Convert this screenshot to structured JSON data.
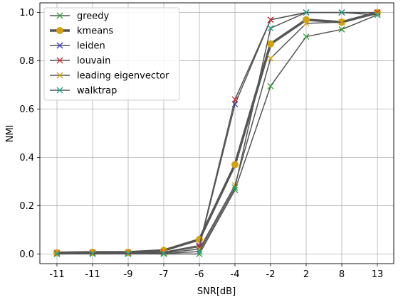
{
  "chart_data": {
    "type": "line",
    "xlabel": "SNR[dB]",
    "ylabel": "NMI",
    "categories": [
      "-11",
      "-11",
      "-9",
      "-7",
      "-6",
      "-4",
      "-2",
      "2",
      "8",
      "13"
    ],
    "ylim": [
      -0.04,
      1.04
    ],
    "yticks": [
      "0.0",
      "0.2",
      "0.4",
      "0.6",
      "0.8",
      "1.0"
    ],
    "grid": true,
    "legend_position": "top-left",
    "line_color": "#555555",
    "series": [
      {
        "name": "greedy",
        "marker": "x",
        "color": "#2ca02c",
        "emphasis": false,
        "values": [
          0.0,
          0.0,
          0.0,
          0.0,
          0.0,
          0.265,
          0.695,
          0.9,
          0.93,
          0.99
        ]
      },
      {
        "name": "kmeans",
        "marker": "o",
        "color": "#d4a20d",
        "emphasis": true,
        "values": [
          0.005,
          0.007,
          0.007,
          0.015,
          0.06,
          0.37,
          0.87,
          0.97,
          0.96,
          1.0
        ]
      },
      {
        "name": "leiden",
        "marker": "x",
        "color": "#3a3acc",
        "emphasis": false,
        "values": [
          0.003,
          0.004,
          0.004,
          0.006,
          0.03,
          0.62,
          0.97,
          1.0,
          1.0,
          1.0
        ]
      },
      {
        "name": "louvain",
        "marker": "x",
        "color": "#d62728",
        "emphasis": false,
        "values": [
          0.004,
          0.005,
          0.005,
          0.008,
          0.035,
          0.64,
          0.97,
          1.0,
          1.0,
          1.0
        ]
      },
      {
        "name": "leading eigenvector",
        "marker": "x",
        "color": "#d4a20d",
        "emphasis": false,
        "values": [
          0.002,
          0.003,
          0.003,
          0.005,
          0.02,
          0.285,
          0.81,
          0.955,
          0.96,
          0.995
        ]
      },
      {
        "name": "walktrap",
        "marker": "x",
        "color": "#17a88a",
        "emphasis": false,
        "values": [
          0.0,
          0.001,
          0.001,
          0.002,
          0.01,
          0.275,
          0.935,
          1.0,
          1.0,
          0.99
        ]
      }
    ]
  }
}
